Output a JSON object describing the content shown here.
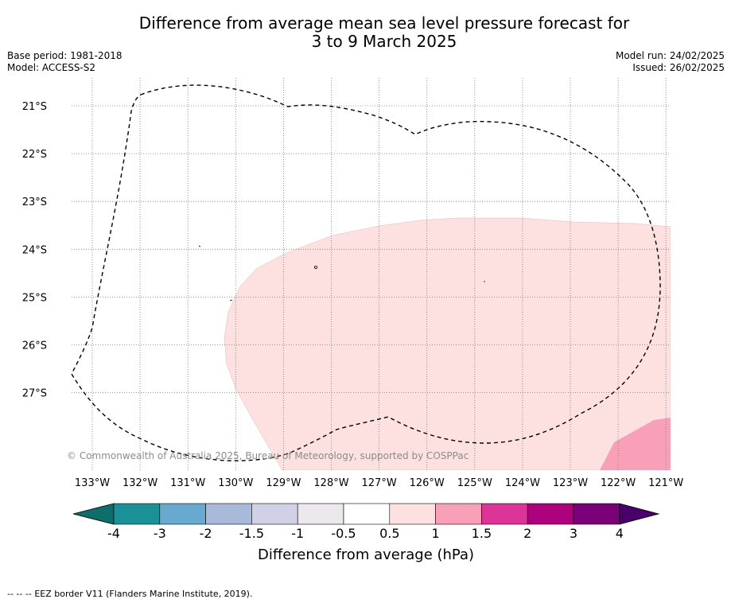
{
  "title": {
    "line1": "Difference from average mean sea level pressure forecast for",
    "line2": "3 to 9 March 2025"
  },
  "meta": {
    "base_period": "Base period: 1981-2018",
    "model": "Model: ACCESS-S2",
    "model_run": "Model run: 24/02/2025",
    "issued": "Issued: 26/02/2025"
  },
  "map": {
    "lon_ticks": [
      "133°W",
      "132°W",
      "131°W",
      "130°W",
      "129°W",
      "128°W",
      "127°W",
      "126°W",
      "125°W",
      "124°W",
      "123°W",
      "122°W",
      "121°W"
    ],
    "lat_ticks": [
      "21°S",
      "22°S",
      "23°S",
      "24°S",
      "25°S",
      "26°S",
      "27°S"
    ],
    "copyright": "© Commonwealth of Australia 2025, Bureau of Meteorology, supported by COSPPac",
    "shading": [
      {
        "range": "0.5 to 1",
        "color": "#fde0e0"
      },
      {
        "range": "1 to 1.5",
        "color": "#f8a0b8"
      }
    ]
  },
  "colorbar": {
    "colors": [
      "#0f6e6a",
      "#1a9196",
      "#68a9cf",
      "#a8b9da",
      "#d0d1e6",
      "#ebe9ec",
      "#ffffff",
      "#fde0e0",
      "#f8a0b8",
      "#dd3498",
      "#ae017e",
      "#7a0177",
      "#49006a"
    ],
    "tick_labels": [
      "-4",
      "-3",
      "-2",
      "-1.5",
      "-1",
      "-0.5",
      "0.5",
      "1",
      "1.5",
      "2",
      "3",
      "4"
    ],
    "label": "Difference from average (hPa)"
  },
  "footer": {
    "legend_symbol": "--  --  --",
    "legend_text": "EEZ border V11 (Flanders Marine Institute, 2019)."
  }
}
